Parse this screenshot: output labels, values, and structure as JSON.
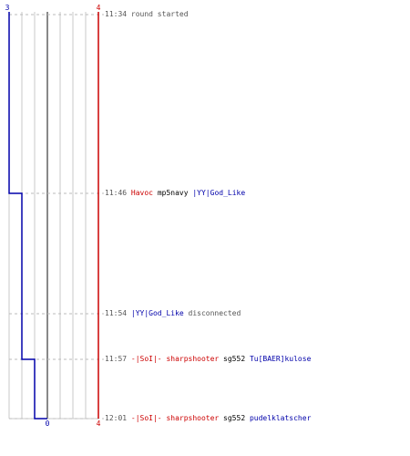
{
  "chart": {
    "team_a_label_top": "3",
    "team_b_label_top": "4",
    "team_a_label_bottom": "0",
    "team_b_label_bottom": "4",
    "colors": {
      "team_a": "#0000aa",
      "team_b": "#cc0000",
      "grid": "#c8c8c8",
      "center": "#888888",
      "event_line": "#bbbbbb"
    }
  },
  "events": [
    {
      "time": "11:34",
      "parts": [
        {
          "text": "round started",
          "style": "msg"
        }
      ]
    },
    {
      "time": "11:46",
      "parts": [
        {
          "text": "Havoc",
          "style": "red"
        },
        {
          "text": " mp5navy ",
          "style": "black"
        },
        {
          "text": "|YY|God_Like",
          "style": "blue"
        }
      ]
    },
    {
      "time": "11:54",
      "parts": [
        {
          "text": "|YY|God_Like",
          "style": "blue"
        },
        {
          "text": " disconnected",
          "style": "msg"
        }
      ]
    },
    {
      "time": "11:57",
      "parts": [
        {
          "text": "-|SoI|- sharpshooter",
          "style": "red"
        },
        {
          "text": " sg552 ",
          "style": "black"
        },
        {
          "text": "Tu[BAER]kulose",
          "style": "blue"
        }
      ]
    },
    {
      "time": "12:01",
      "parts": [
        {
          "text": "-|SoI|- sharpshooter",
          "style": "red"
        },
        {
          "text": " sg552 ",
          "style": "black"
        },
        {
          "text": "pudelklatscher",
          "style": "blue"
        }
      ]
    }
  ]
}
